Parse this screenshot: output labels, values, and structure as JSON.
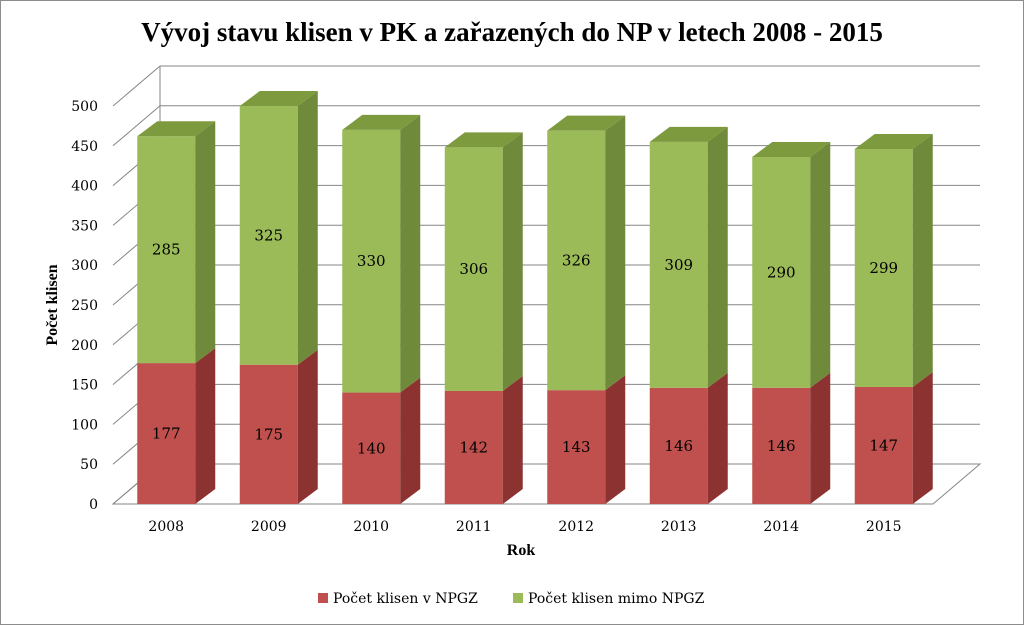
{
  "chart_data": {
    "type": "bar",
    "stacked": true,
    "three_d": true,
    "title": "Vývoj stavu klisen v PK a zařazených do NP v letech 2008 - 2015",
    "xlabel": "Rok",
    "ylabel": "Počet klisen",
    "ylim": [
      0,
      500
    ],
    "yticks": [
      0,
      50,
      100,
      150,
      200,
      250,
      300,
      350,
      400,
      450,
      500
    ],
    "grid": true,
    "legend_position": "bottom",
    "categories": [
      "2008",
      "2009",
      "2010",
      "2011",
      "2012",
      "2013",
      "2014",
      "2015"
    ],
    "series": [
      {
        "name": "Počet  klisen v NPGZ",
        "values": [
          177,
          175,
          140,
          142,
          143,
          146,
          146,
          147
        ],
        "color": "#c0504d",
        "side_color": "#8c3332",
        "top_color": "#d17775"
      },
      {
        "name": "Počet klisen  mimo NPGZ",
        "values": [
          285,
          325,
          330,
          306,
          326,
          309,
          290,
          299
        ],
        "color": "#9bbb59",
        "side_color": "#6f8a3a",
        "top_color": "#7d9a3f"
      }
    ]
  }
}
